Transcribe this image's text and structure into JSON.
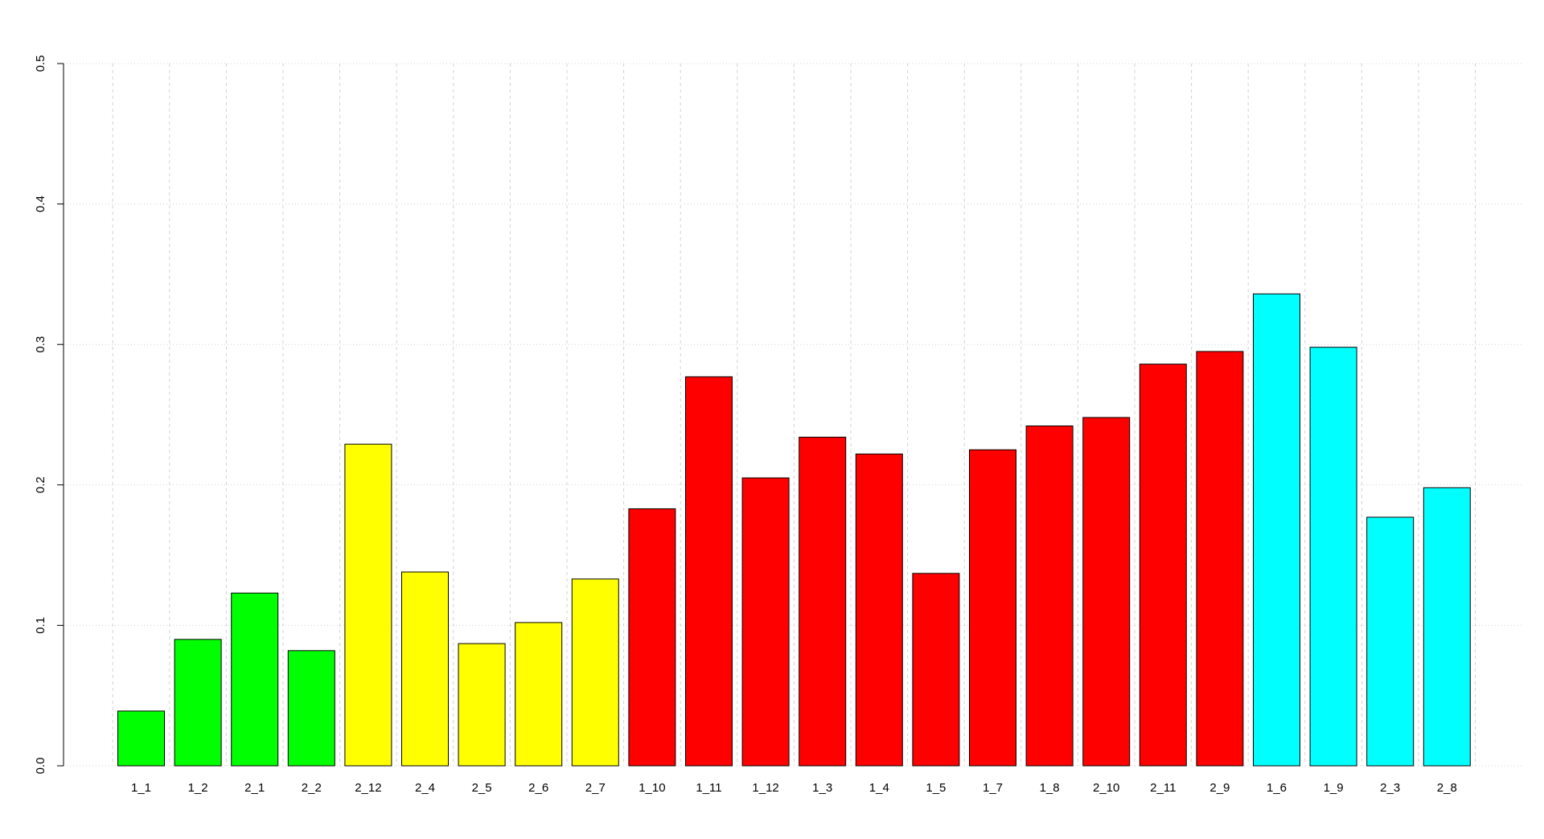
{
  "chart_data": {
    "type": "bar",
    "title": "",
    "xlabel": "",
    "ylabel": "",
    "ylim": [
      0,
      0.5
    ],
    "yticks": [
      "0.0",
      "0.1",
      "0.2",
      "0.3",
      "0.4",
      "0.5"
    ],
    "grid": true,
    "legend": "none",
    "categories": [
      "1_1",
      "1_2",
      "2_1",
      "2_2",
      "2_12",
      "2_4",
      "2_5",
      "2_6",
      "2_7",
      "1_10",
      "1_11",
      "1_12",
      "1_3",
      "1_4",
      "1_5",
      "1_7",
      "1_8",
      "2_10",
      "2_11",
      "2_9",
      "1_6",
      "1_9",
      "2_3",
      "2_8"
    ],
    "values": [
      0.039,
      0.09,
      0.123,
      0.082,
      0.229,
      0.138,
      0.087,
      0.102,
      0.133,
      0.183,
      0.277,
      0.205,
      0.234,
      0.222,
      0.137,
      0.225,
      0.242,
      0.248,
      0.286,
      0.295,
      0.336,
      0.298,
      0.177,
      0.198
    ],
    "bar_colors": [
      "#00ff00",
      "#00ff00",
      "#00ff00",
      "#00ff00",
      "#ffff00",
      "#ffff00",
      "#ffff00",
      "#ffff00",
      "#ffff00",
      "#ff0000",
      "#ff0000",
      "#ff0000",
      "#ff0000",
      "#ff0000",
      "#ff0000",
      "#ff0000",
      "#ff0000",
      "#ff0000",
      "#ff0000",
      "#ff0000",
      "#00ffff",
      "#00ffff",
      "#00ffff",
      "#00ffff"
    ]
  }
}
